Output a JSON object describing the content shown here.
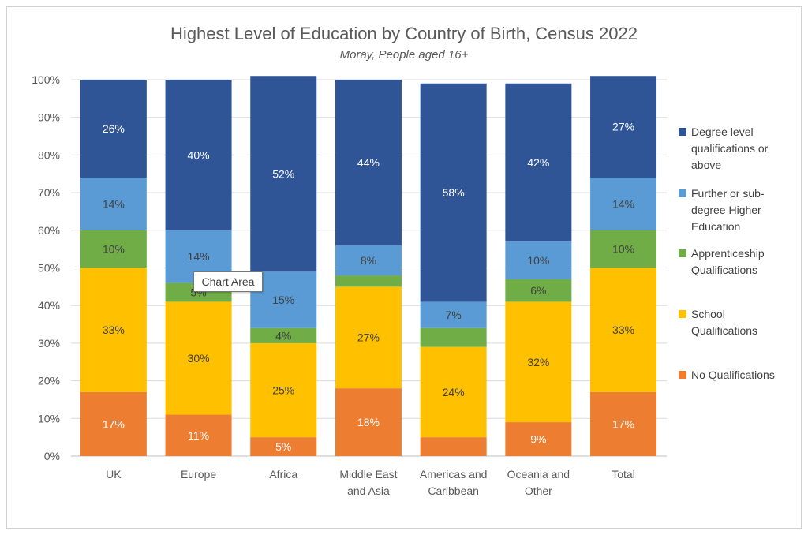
{
  "chart_data": {
    "type": "stacked-bar",
    "title": "Highest Level of Education by Country of Birth, Census 2022",
    "subtitle": "Moray, People aged 16+",
    "categories": [
      [
        "UK"
      ],
      [
        "Europe"
      ],
      [
        "Africa"
      ],
      [
        "Middle East",
        "and Asia"
      ],
      [
        "Americas and",
        "Caribbean"
      ],
      [
        "Oceania and",
        "Other"
      ],
      [
        "Total"
      ]
    ],
    "yticks": [
      "0%",
      "10%",
      "20%",
      "30%",
      "40%",
      "50%",
      "60%",
      "70%",
      "80%",
      "90%",
      "100%"
    ],
    "ylim": [
      0,
      100
    ],
    "grid": true,
    "legend_position": "right",
    "series": [
      {
        "name": "No Qualifications",
        "color": "#ED7D31",
        "label_color": "#ffffff",
        "values": [
          17,
          11,
          5,
          18,
          5,
          9,
          17
        ],
        "labels": [
          "17%",
          "11%",
          "5%",
          "18%",
          "",
          "9%",
          "17%"
        ]
      },
      {
        "name": "School Qualifications",
        "color": "#FFC000",
        "label_color": "#404040",
        "values": [
          33,
          30,
          25,
          27,
          24,
          32,
          33
        ],
        "labels": [
          "33%",
          "30%",
          "25%",
          "27%",
          "24%",
          "32%",
          "33%"
        ]
      },
      {
        "name": "Apprenticeship Qualifications",
        "color": "#70AD47",
        "label_color": "#404040",
        "values": [
          10,
          5,
          4,
          3,
          5,
          6,
          10
        ],
        "labels": [
          "10%",
          "5%",
          "4%",
          "",
          "",
          "6%",
          "10%"
        ]
      },
      {
        "name": "Further or sub-degree Higher Education",
        "color": "#5B9BD5",
        "label_color": "#404040",
        "values": [
          14,
          14,
          15,
          8,
          7,
          10,
          14
        ],
        "labels": [
          "14%",
          "14%",
          "15%",
          "8%",
          "7%",
          "10%",
          "14%"
        ]
      },
      {
        "name": "Degree level qualifications or above",
        "color": "#2F5597",
        "label_color": "#ffffff",
        "values": [
          26,
          40,
          52,
          44,
          58,
          42,
          27
        ],
        "labels": [
          "26%",
          "40%",
          "52%",
          "44%",
          "58%",
          "42%",
          "27%"
        ]
      }
    ],
    "legend_lines": [
      [
        "Degree level",
        "qualifications or",
        "above"
      ],
      [
        "Further or sub-",
        "degree Higher",
        "Education"
      ],
      [
        "Apprenticeship",
        "Qualifications"
      ],
      [
        "School",
        "Qualifications"
      ],
      [
        "No Qualifications"
      ]
    ],
    "legend_order": [
      4,
      3,
      2,
      1,
      0
    ]
  },
  "tooltip": {
    "text": "Chart Area"
  }
}
